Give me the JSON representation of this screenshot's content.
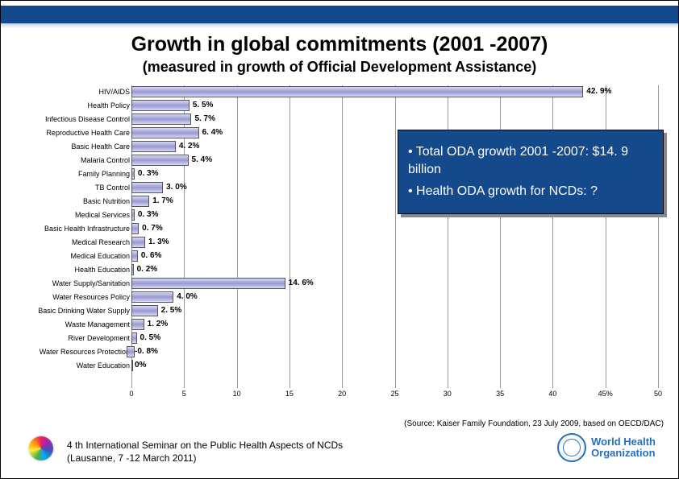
{
  "title": "Growth in global commitments (2001 -2007)",
  "subtitle": "(measured in growth of Official Development Assistance)",
  "chart": {
    "type": "bar",
    "orientation": "horizontal",
    "bar_color_gradient": [
      "#d8d8f5",
      "#9898d0",
      "#d8d8f5"
    ],
    "border_color": "#555555",
    "grid_color": "#999999",
    "label_fontsize": 9,
    "value_fontsize": 10,
    "xlim": [
      0,
      50
    ],
    "xtick_step": 5,
    "xticks": [
      "0",
      "5",
      "10",
      "15",
      "20",
      "25",
      "30",
      "35",
      "40",
      "45%",
      "50"
    ],
    "categories": [
      "HIV/AIDS",
      "Health Policy",
      "Infectious Disease Control",
      "Reproductive Health Care",
      "Basic Health Care",
      "Malaria Control",
      "Family Planning",
      "TB Control",
      "Basic Nutrition",
      "Medical Services",
      "Basic Health Infrastructure",
      "Medical Research",
      "Medical Education",
      "Health Education",
      "Water Supply/Sanitation",
      "Water Resources Policy",
      "Basic Drinking Water Supply",
      "Waste Management",
      "River Development",
      "Water Resources Protection",
      "Water Education"
    ],
    "values": [
      42.9,
      5.5,
      5.7,
      6.4,
      4.2,
      5.4,
      0.3,
      3.0,
      1.7,
      0.3,
      0.7,
      1.3,
      0.6,
      0.2,
      14.6,
      4.0,
      2.5,
      1.2,
      0.5,
      -0.8,
      0
    ],
    "value_labels": [
      "42. 9%",
      "5. 5%",
      "5. 7%",
      "6. 4%",
      "4. 2%",
      "5. 4%",
      "0. 3%",
      "3. 0%",
      "1. 7%",
      "0. 3%",
      "0. 7%",
      "1. 3%",
      "0. 6%",
      "0. 2%",
      "14. 6%",
      "4. 0%",
      "2. 5%",
      "1. 2%",
      "0. 5%",
      "-0. 8%",
      "0%"
    ]
  },
  "callout": {
    "background_color": "#144a8c",
    "text_color": "#ffffff",
    "items": [
      "• Total ODA growth 2001 -2007: $14. 9 billion",
      "• Health ODA growth for NCDs: ?"
    ]
  },
  "source": "(Source: Kaiser Family Foundation, 23 July 2009, based on OECD/DAC)",
  "footer": {
    "text_line1": "4 th International Seminar on the Public Health Aspects of NCDs",
    "text_line2": "(Lausanne, 7 -12 March 2011)",
    "who_line1": "World Health",
    "who_line2": "Organization"
  },
  "colors": {
    "header_band": "#144a8c",
    "who_blue": "#2a6fb5"
  }
}
